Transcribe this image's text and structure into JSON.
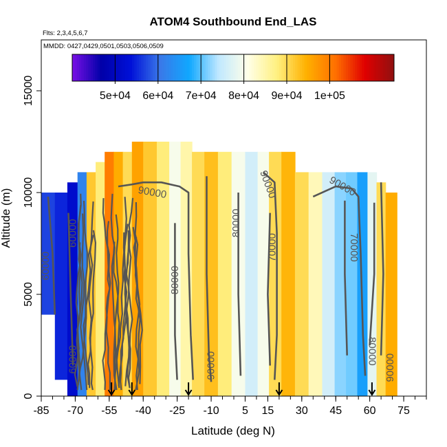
{
  "chart_data": {
    "type": "heatmap",
    "title": "ATOM4 Southbound End_LAS",
    "subtitle_flights": "Flts: 2,3,4,5,6,7",
    "subtitle_dates": "MMDD: 0427,0429,0501,0503,0506,0509",
    "xlabel": "Latitude (deg N)",
    "ylabel": "Altitude (m)",
    "xlim": [
      -85,
      85
    ],
    "ylim": [
      0,
      17500
    ],
    "x_ticks": [
      -85,
      -70,
      -55,
      -40,
      -25,
      -10,
      5,
      15,
      30,
      45,
      60,
      75
    ],
    "x_tick_labels": [
      "-85",
      "-70",
      "-55",
      "-40",
      "-25",
      "-10",
      "5",
      "15",
      "30",
      "45",
      "60",
      "75"
    ],
    "y_ticks": [
      0,
      5000,
      10000,
      15000
    ],
    "y_tick_labels": [
      "0",
      "5000",
      "10000",
      "15000"
    ],
    "colorbar": {
      "range": [
        40000,
        115000
      ],
      "ticks": [
        50000,
        60000,
        70000,
        80000,
        90000,
        100000
      ],
      "tick_labels": [
        "5e+04",
        "6e+04",
        "7e+04",
        "8e+04",
        "9e+04",
        "1e+05"
      ],
      "colors": [
        "#7a10e6",
        "#0000a8",
        "#0010d8",
        "#3a78e8",
        "#10a8ff",
        "#c0e8ff",
        "#ffffe8",
        "#fff080",
        "#ffb000",
        "#ff7000",
        "#e00000",
        "#901010"
      ]
    },
    "columns": [
      {
        "lat": -82,
        "value": 57000,
        "alt_top": 10000,
        "alt_bottom": 4000
      },
      {
        "lat": -76,
        "value": 55000,
        "alt_top": 10000,
        "alt_bottom": 800
      },
      {
        "lat": -71,
        "value": 52000,
        "alt_top": 10500,
        "alt_bottom": 0
      },
      {
        "lat": -67,
        "value": 62000,
        "alt_top": 11000,
        "alt_bottom": 0
      },
      {
        "lat": -63,
        "value": 92000,
        "alt_top": 11000,
        "alt_bottom": 0
      },
      {
        "lat": -59,
        "value": 88000,
        "alt_top": 11500,
        "alt_bottom": 0
      },
      {
        "lat": -55,
        "value": 100000,
        "alt_top": 12000,
        "alt_bottom": 0
      },
      {
        "lat": -51,
        "value": 95000,
        "alt_top": 12000,
        "alt_bottom": 0
      },
      {
        "lat": -47,
        "value": 90000,
        "alt_top": 12000,
        "alt_bottom": 0
      },
      {
        "lat": -43,
        "value": 96000,
        "alt_top": 12500,
        "alt_bottom": 0
      },
      {
        "lat": -37,
        "value": 92000,
        "alt_top": 12500,
        "alt_bottom": 0
      },
      {
        "lat": -31,
        "value": 88000,
        "alt_top": 12500,
        "alt_bottom": 0
      },
      {
        "lat": -26,
        "value": 80000,
        "alt_top": 12500,
        "alt_bottom": 0
      },
      {
        "lat": -21,
        "value": 85000,
        "alt_top": 12500,
        "alt_bottom": 0
      },
      {
        "lat": -16,
        "value": 90000,
        "alt_top": 12000,
        "alt_bottom": 0
      },
      {
        "lat": -10,
        "value": 93000,
        "alt_top": 12000,
        "alt_bottom": 0
      },
      {
        "lat": -4,
        "value": 88000,
        "alt_top": 12000,
        "alt_bottom": 0
      },
      {
        "lat": 2,
        "value": 80000,
        "alt_top": 12000,
        "alt_bottom": 0
      },
      {
        "lat": 8,
        "value": 76000,
        "alt_top": 12000,
        "alt_bottom": 0
      },
      {
        "lat": 13,
        "value": 80000,
        "alt_top": 12000,
        "alt_bottom": 0
      },
      {
        "lat": 18,
        "value": 90000,
        "alt_top": 12000,
        "alt_bottom": 0
      },
      {
        "lat": 24,
        "value": 94000,
        "alt_top": 12000,
        "alt_bottom": 0
      },
      {
        "lat": 30,
        "value": 90000,
        "alt_top": 11000,
        "alt_bottom": 0
      },
      {
        "lat": 36,
        "value": 84000,
        "alt_top": 11000,
        "alt_bottom": 0
      },
      {
        "lat": 42,
        "value": 76000,
        "alt_top": 11000,
        "alt_bottom": 0
      },
      {
        "lat": 47,
        "value": 72000,
        "alt_top": 11000,
        "alt_bottom": 0
      },
      {
        "lat": 52,
        "value": 71000,
        "alt_top": 11000,
        "alt_bottom": 0
      },
      {
        "lat": 57,
        "value": 66000,
        "alt_top": 11000,
        "alt_bottom": 0
      },
      {
        "lat": 61,
        "value": 78000,
        "alt_top": 11000,
        "alt_bottom": 0
      },
      {
        "lat": 65,
        "value": 90000,
        "alt_top": 10500,
        "alt_bottom": 0
      },
      {
        "lat": 69,
        "value": 95000,
        "alt_top": 10000,
        "alt_bottom": 0
      }
    ],
    "contours": [
      {
        "level_label": "90000",
        "points": [
          [
            -51,
            10300
          ],
          [
            -45,
            10400
          ],
          [
            -40,
            10500
          ],
          [
            -32,
            10500
          ],
          [
            -24,
            10300
          ],
          [
            -20,
            10000
          ],
          [
            -20,
            7000
          ],
          [
            -19,
            3000
          ],
          [
            -18,
            800
          ]
        ]
      },
      {
        "level_label": "80000",
        "points": [
          [
            -26,
            8500
          ],
          [
            -26,
            3000
          ],
          [
            -25,
            800
          ]
        ]
      },
      {
        "level_label": "90000",
        "points": [
          [
            -12,
            10800
          ],
          [
            -12,
            6000
          ],
          [
            -11,
            2000
          ],
          [
            -10,
            700
          ]
        ]
      },
      {
        "level_label": "80000",
        "points": [
          [
            2,
            10000
          ],
          [
            2,
            5000
          ],
          [
            3,
            1000
          ]
        ]
      },
      {
        "level_label": "90000",
        "points": [
          [
            13,
            11000
          ],
          [
            18,
            10500
          ],
          [
            19,
            8000
          ],
          [
            19,
            3000
          ],
          [
            18,
            800
          ]
        ]
      },
      {
        "level_label": "70000",
        "points": [
          [
            16,
            9000
          ],
          [
            15,
            5000
          ],
          [
            16,
            1500
          ]
        ]
      },
      {
        "level_label": "90000",
        "points": [
          [
            35,
            9800
          ],
          [
            45,
            10300
          ],
          [
            52,
            10200
          ],
          [
            55,
            9800
          ],
          [
            56,
            7000
          ],
          [
            57,
            3000
          ],
          [
            58,
            1000
          ]
        ]
      },
      {
        "level_label": "70000",
        "points": [
          [
            49,
            9600
          ],
          [
            49,
            6000
          ],
          [
            50,
            2000
          ]
        ]
      },
      {
        "level_label": "80000",
        "points": [
          [
            62,
            9500
          ],
          [
            62,
            6000
          ],
          [
            60,
            2500
          ]
        ]
      },
      {
        "level_label": "90000",
        "points": [
          [
            65,
            10500
          ],
          [
            66,
            6000
          ],
          [
            65,
            2000
          ]
        ]
      },
      {
        "level_label": "60000",
        "points": [
          [
            -82,
            9800
          ],
          [
            -80,
            7000
          ],
          [
            -79,
            4000
          ]
        ]
      },
      {
        "level_label": "60000",
        "points": [
          [
            -73,
            9000
          ],
          [
            -72,
            5000
          ],
          [
            -71,
            1500
          ]
        ]
      }
    ],
    "contour_labels": [
      {
        "text": "90000",
        "lat": -36,
        "alt": 10000,
        "angle": 10
      },
      {
        "text": "80000",
        "lat": -26,
        "alt": 5700,
        "angle": -90
      },
      {
        "text": "90000",
        "lat": -10,
        "alt": 1500,
        "angle": -90
      },
      {
        "text": "80000",
        "lat": 1,
        "alt": 8500,
        "angle": -90
      },
      {
        "text": "90000",
        "lat": 15,
        "alt": 10400,
        "angle": 70
      },
      {
        "text": "70000",
        "lat": 17,
        "alt": 7300,
        "angle": -90
      },
      {
        "text": "90000",
        "lat": 48,
        "alt": 10300,
        "angle": 30
      },
      {
        "text": "70000",
        "lat": 53,
        "alt": 7300,
        "angle": 90
      },
      {
        "text": "80000",
        "lat": 61,
        "alt": 2200,
        "angle": 90
      },
      {
        "text": "90000",
        "lat": 69,
        "alt": 1400,
        "angle": -90
      },
      {
        "text": "60000",
        "lat": -83,
        "alt": 6400,
        "angle": -90
      },
      {
        "text": "60000",
        "lat": -71,
        "alt": 1800,
        "angle": -90
      },
      {
        "text": "60000",
        "lat": -71,
        "alt": 8000,
        "angle": -90
      }
    ],
    "end_markers": [
      -54,
      -45,
      -20,
      20,
      61
    ],
    "noise_band": {
      "lat_min": -70,
      "lat_max": -40,
      "alt_min": 0,
      "alt_max": 10000
    }
  }
}
